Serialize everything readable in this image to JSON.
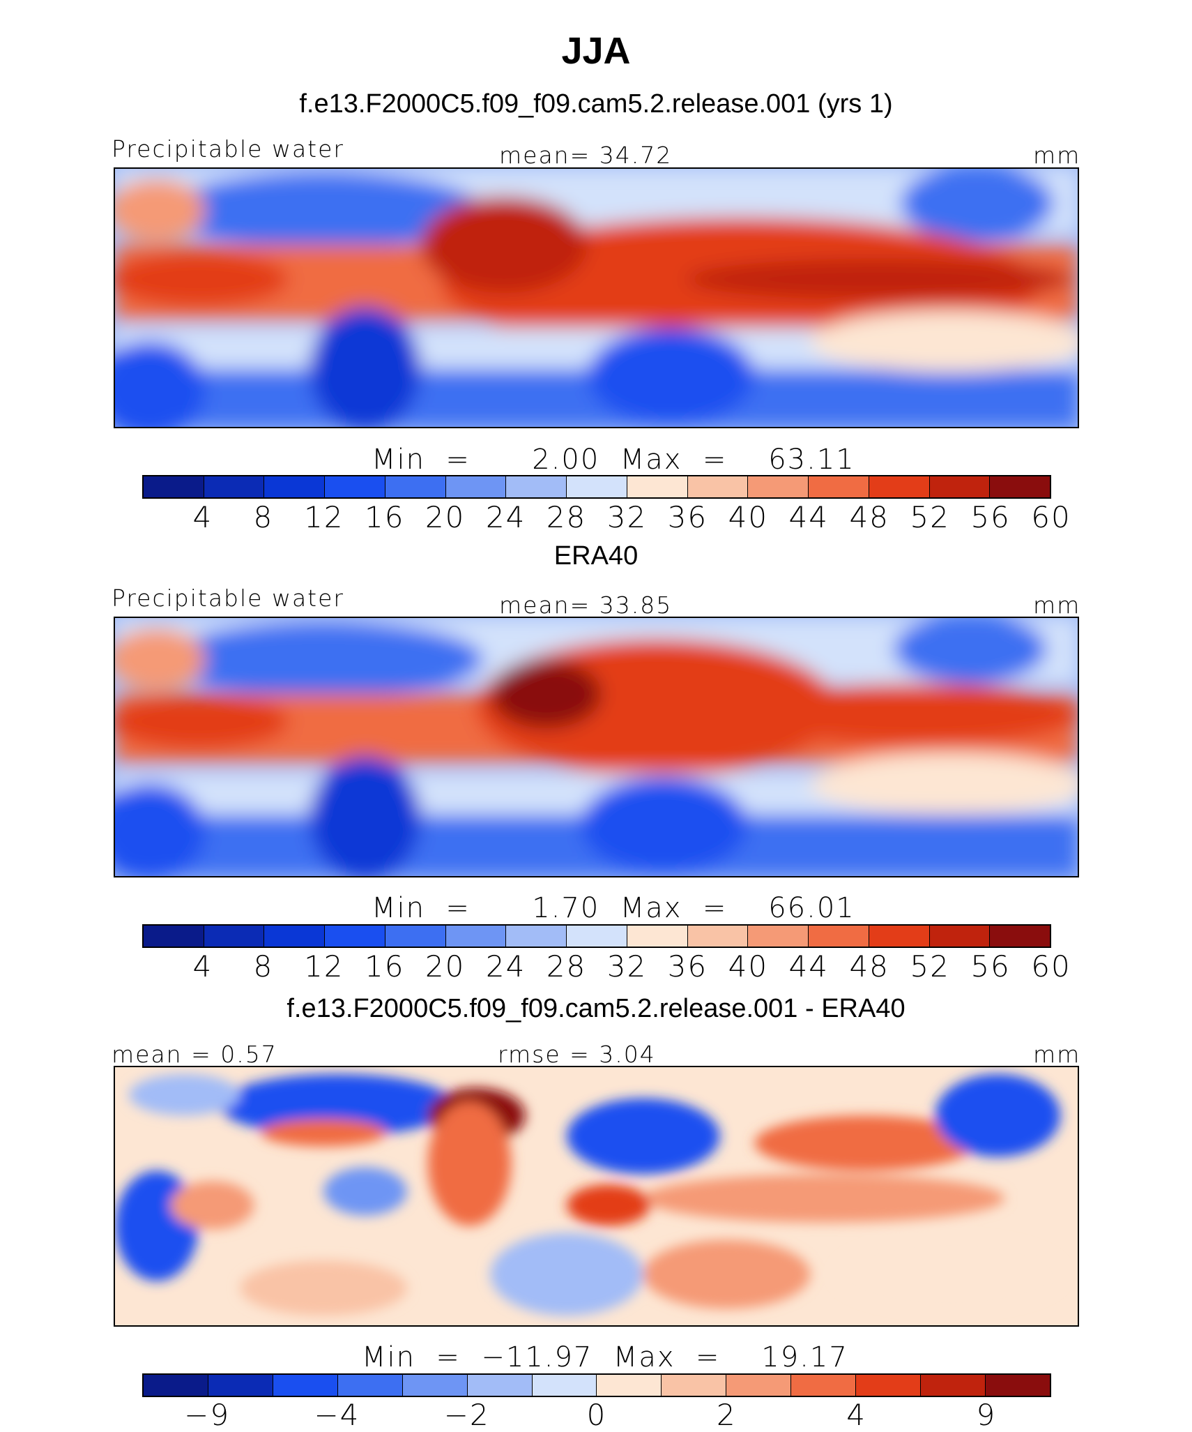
{
  "figure": {
    "season": "JJA"
  },
  "panels": [
    {
      "title": "f.e13.F2000C5.f09_f09.cam5.2.release.001 (yrs 1)",
      "left_label": "Precipitable water",
      "center_label": "mean=   34.72",
      "units": "mm",
      "minmax": "Min  =      2.00  Max  =    63.11",
      "colorbar_ticks": [
        "4",
        "8",
        "12",
        "16",
        "20",
        "24",
        "28",
        "32",
        "36",
        "40",
        "44",
        "48",
        "52",
        "56",
        "60"
      ]
    },
    {
      "title": "ERA40",
      "left_label": "Precipitable water",
      "center_label": "mean=   33.85",
      "units": "mm",
      "minmax": "Min  =      1.70  Max  =    66.01",
      "colorbar_ticks": [
        "4",
        "8",
        "12",
        "16",
        "20",
        "24",
        "28",
        "32",
        "36",
        "40",
        "44",
        "48",
        "52",
        "56",
        "60"
      ]
    },
    {
      "title": "f.e13.F2000C5.f09_f09.cam5.2.release.001 - ERA40",
      "left_label": "mean  =     0.57",
      "center_label": "rmse  =     3.04",
      "units": "mm",
      "minmax": "Min  =  −11.97  Max  =    19.17",
      "colorbar_ticks": [
        "−9",
        "−4",
        "−2",
        "0",
        "2",
        "4",
        "9"
      ]
    }
  ],
  "colors": {
    "abs_scale": [
      "#0a1b8a",
      "#0b2bb5",
      "#0a37d6",
      "#1a4ff0",
      "#3d6ff2",
      "#6e95f4",
      "#a2bcf7",
      "#d3e2fb",
      "#fde6d3",
      "#f9c3a6",
      "#f59a76",
      "#f06c43",
      "#e33d18",
      "#c0230d",
      "#8a0d0d"
    ],
    "diff_scale": [
      "#0a1b8a",
      "#0b2bb5",
      "#1a4ff0",
      "#3d6ff2",
      "#6e95f4",
      "#a2bcf7",
      "#d3e2fb",
      "#fde6d3",
      "#f9c3a6",
      "#f59a76",
      "#f06c43",
      "#e33d18",
      "#c0230d",
      "#8a0d0d"
    ]
  }
}
